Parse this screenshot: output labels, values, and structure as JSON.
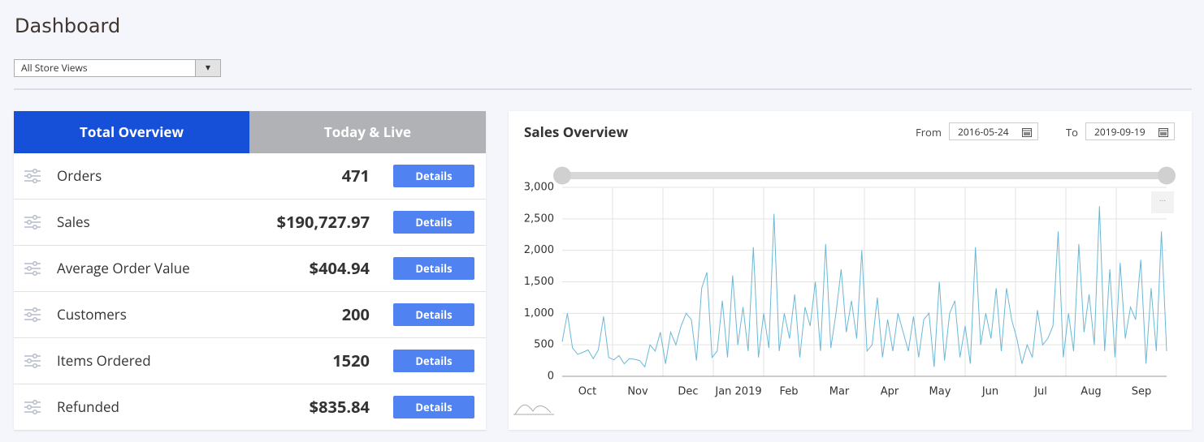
{
  "header": {
    "title": "Dashboard",
    "store_select": "All Store Views"
  },
  "tabs": [
    "Total Overview",
    "Today & Live"
  ],
  "rows": [
    {
      "label": "Orders",
      "value": "471",
      "button": "Details"
    },
    {
      "label": "Sales",
      "value": "$190,727.97",
      "button": "Details"
    },
    {
      "label": "Average Order Value",
      "value": "$404.94",
      "button": "Details"
    },
    {
      "label": "Customers",
      "value": "200",
      "button": "Details"
    },
    {
      "label": "Items Ordered",
      "value": "1520",
      "button": "Details"
    },
    {
      "label": "Refunded",
      "value": "$835.84",
      "button": "Details"
    }
  ],
  "sales_panel": {
    "title": "Sales Overview",
    "from_label": "From",
    "from_date": "2016-05-24",
    "to_label": "To",
    "to_date": "2019-09-19"
  },
  "chart_data": {
    "type": "line",
    "color": "#6bb8d6",
    "grid": true,
    "x_labels": [
      "Oct",
      "Nov",
      "Dec",
      "Jan 2019",
      "Feb",
      "Mar",
      "Apr",
      "May",
      "Jun",
      "Jul",
      "Aug",
      "Sep"
    ],
    "values": [
      550,
      1000,
      450,
      350,
      380,
      420,
      280,
      420,
      950,
      300,
      260,
      330,
      200,
      280,
      270,
      250,
      150,
      500,
      400,
      700,
      200,
      700,
      500,
      800,
      1000,
      900,
      250,
      1400,
      1650,
      300,
      400,
      1200,
      300,
      1600,
      500,
      1100,
      400,
      2050,
      300,
      1000,
      450,
      2580,
      400,
      1000,
      600,
      1300,
      300,
      1100,
      800,
      1500,
      400,
      2100,
      450,
      1000,
      1700,
      700,
      1200,
      600,
      2000,
      400,
      500,
      1250,
      300,
      900,
      400,
      1000,
      700,
      400,
      950,
      300,
      900,
      1000,
      150,
      1500,
      250,
      1000,
      1200,
      300,
      800,
      200,
      2050,
      500,
      1000,
      600,
      1400,
      400,
      1400,
      900,
      600,
      200,
      500,
      300,
      1050,
      500,
      600,
      800,
      2300,
      300,
      1000,
      400,
      2100,
      700,
      1300,
      500,
      2700,
      400,
      1700,
      300,
      1800,
      600,
      1100,
      900,
      1850,
      200,
      1400,
      400,
      2300,
      400
    ],
    "ylim": [
      0,
      3000
    ],
    "yticks": [
      0,
      500,
      {
        "value": 1000,
        "label": "1,000"
      },
      {
        "value": 1500,
        "label": "1,500"
      },
      {
        "value": 2000,
        "label": "2,000"
      },
      {
        "value": 2500,
        "label": "2,500"
      },
      {
        "value": 3000,
        "label": "3,000"
      }
    ]
  }
}
